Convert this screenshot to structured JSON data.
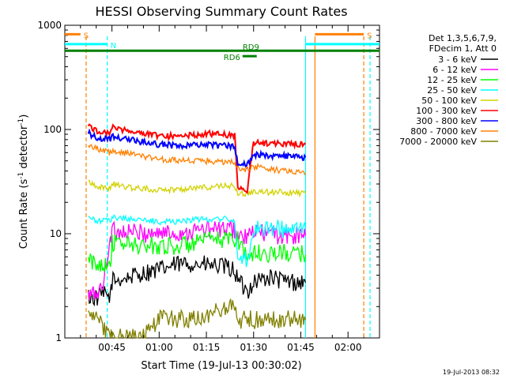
{
  "chart_data": {
    "type": "line",
    "title": "HESSI Observing Summary Count Rates",
    "xlabel": "Start Time (19-Jul-13 00:30:02)",
    "ylabel": "Count Rate (s⁻¹ detector⁻¹)",
    "ylabel_base": "Count Rate (s",
    "ylabel_exp1": "-1",
    "ylabel_mid": " detector",
    "ylabel_exp2": "-1",
    "ylabel_end": ")",
    "yscale": "log",
    "ylim": [
      1,
      1000
    ],
    "xlim_minutes": [
      30.03,
      130.0
    ],
    "xticks": [
      {
        "minute": 45,
        "label": "00:45"
      },
      {
        "minute": 60,
        "label": "01:00"
      },
      {
        "minute": 75,
        "label": "01:15"
      },
      {
        "minute": 90,
        "label": "01:30"
      },
      {
        "minute": 105,
        "label": "01:45"
      },
      {
        "minute": 120,
        "label": "02:00"
      }
    ],
    "yticks": [
      {
        "value": 1,
        "label": "1"
      },
      {
        "value": 10,
        "label": "10"
      },
      {
        "value": 100,
        "label": "100"
      },
      {
        "value": 1000,
        "label": "1000"
      }
    ],
    "legend_header": [
      "Det 1,3,5,6,7,9,",
      "FDecim 1, Att 0"
    ],
    "legend_position": "right",
    "series": [
      {
        "name": "3 - 6 keV",
        "color": "#000000",
        "x": [
          37.5,
          40,
          42,
          44.5,
          45,
          50,
          55,
          60,
          65,
          70,
          75,
          80,
          84,
          85,
          88,
          90,
          95,
          100,
          105,
          106.5
        ],
        "values": [
          2.5,
          2.4,
          2.6,
          2.5,
          3.5,
          3.8,
          4.2,
          4.5,
          5.0,
          5.2,
          5.0,
          4.8,
          4.5,
          3.5,
          2.8,
          3.5,
          3.8,
          3.5,
          3.4,
          3.4
        ]
      },
      {
        "name": "6 - 12 keV",
        "color": "#ff00ff",
        "x": [
          37.5,
          40,
          42,
          44.5,
          45,
          50,
          55,
          60,
          65,
          70,
          75,
          80,
          84,
          85,
          88,
          90,
          95,
          100,
          105,
          106.5
        ],
        "values": [
          2.5,
          2.7,
          3.0,
          9.5,
          10.5,
          10.5,
          10.0,
          10.3,
          10.0,
          10.5,
          11.0,
          11.0,
          11.0,
          9.5,
          9.0,
          10.5,
          10.0,
          9.5,
          9.5,
          9.5
        ]
      },
      {
        "name": "12 - 25 keV",
        "color": "#00ff00",
        "x": [
          37.5,
          40,
          42,
          44.5,
          45,
          50,
          55,
          60,
          65,
          70,
          75,
          80,
          84,
          85,
          88,
          90,
          95,
          100,
          105,
          106.5
        ],
        "values": [
          5.5,
          5.0,
          5.2,
          5.4,
          8.0,
          8.0,
          7.5,
          7.8,
          7.5,
          8.0,
          8.5,
          8.8,
          9.0,
          9.0,
          6.0,
          6.5,
          6.5,
          6.5,
          6.3,
          6.3
        ]
      },
      {
        "name": "25 - 50 keV",
        "color": "#00ffff",
        "x": [
          37.5,
          40,
          42,
          44.5,
          45,
          50,
          55,
          60,
          65,
          70,
          75,
          80,
          84,
          85,
          88,
          90,
          95,
          100,
          105,
          106.5
        ],
        "values": [
          14.5,
          13.0,
          13.5,
          13.0,
          14.5,
          14.0,
          13.5,
          13.0,
          13.2,
          13.5,
          13.8,
          14.0,
          13.0,
          6.0,
          5.5,
          11.5,
          11.5,
          11.0,
          11.0,
          11.0
        ]
      },
      {
        "name": "50 - 100 keV",
        "color": "#d2d200",
        "x": [
          37.5,
          40,
          42,
          44.5,
          45,
          50,
          55,
          60,
          65,
          70,
          75,
          80,
          84,
          85,
          88,
          90,
          95,
          100,
          105,
          106.5
        ],
        "values": [
          32,
          29,
          28,
          27,
          30,
          28,
          27,
          26.5,
          26.5,
          27.5,
          28,
          28.5,
          29,
          24,
          24,
          25.5,
          25,
          25,
          24.5,
          24.5
        ]
      },
      {
        "name": "100 - 300 keV",
        "color": "#ff0000",
        "x": [
          37.5,
          40,
          42,
          44.5,
          45,
          50,
          55,
          60,
          65,
          70,
          75,
          80,
          84,
          85,
          88,
          90,
          95,
          100,
          105,
          106.5
        ],
        "values": [
          108,
          98,
          95,
          92,
          105,
          98,
          92,
          87,
          86,
          88,
          91,
          90,
          88,
          27,
          26,
          75,
          74,
          73,
          72,
          72
        ]
      },
      {
        "name": "300 - 800 keV",
        "color": "#0000ff",
        "x": [
          37.5,
          40,
          42,
          44.5,
          45,
          50,
          55,
          60,
          65,
          70,
          75,
          80,
          84,
          85,
          88,
          90,
          95,
          100,
          105,
          106.5
        ],
        "values": [
          92,
          85,
          82,
          80,
          86,
          80,
          76,
          72,
          70,
          70,
          71,
          70,
          69,
          48,
          46,
          58,
          56,
          55,
          54,
          54
        ]
      },
      {
        "name": "800 - 7000 keV",
        "color": "#ff8000",
        "x": [
          37.5,
          40,
          42,
          44.5,
          45,
          50,
          55,
          60,
          65,
          70,
          75,
          80,
          84,
          85,
          88,
          90,
          95,
          100,
          105,
          106.5
        ],
        "values": [
          72,
          66,
          63,
          60,
          63,
          59,
          55,
          52,
          51,
          50,
          50,
          49,
          48,
          42,
          41,
          44,
          42,
          40,
          38,
          38
        ]
      },
      {
        "name": "7000 - 20000 keV",
        "color": "#808000",
        "x": [
          37.5,
          40,
          42,
          44.5,
          45,
          50,
          55,
          60,
          65,
          70,
          75,
          80,
          84,
          85,
          88,
          90,
          95,
          100,
          105,
          106.5
        ],
        "values": [
          2.0,
          1.5,
          1.3,
          1.0,
          1.0,
          1.0,
          1.0,
          1.5,
          1.5,
          1.5,
          1.5,
          2.0,
          2.0,
          1.5,
          1.5,
          1.5,
          1.5,
          1.5,
          1.5,
          1.5
        ]
      }
    ],
    "flag_bars": [
      {
        "label": "S",
        "color": "#ff8000",
        "x_start": 30.03,
        "x_end": 35.0,
        "level": 820
      },
      {
        "label": "S",
        "color": "#ff8000",
        "x_start": 109.5,
        "x_end": 125.0,
        "level": 820
      },
      {
        "label": "N",
        "color": "#00ffff",
        "x_start": 30.03,
        "x_end": 43.5,
        "level": 660
      },
      {
        "label": "",
        "color": "#00ffff",
        "x_start": 106.5,
        "x_end": 130.0,
        "level": 660
      },
      {
        "label": "RD9",
        "color": "#008000",
        "x_start": 30.03,
        "x_end": 130.0,
        "level": 570
      },
      {
        "label": "RD6",
        "color": "#008000",
        "x_start": 86.5,
        "x_end": 91.0,
        "level": 505
      }
    ],
    "vlines": [
      {
        "minute": 36.8,
        "color": "#ff8000",
        "dashed": true
      },
      {
        "minute": 43.5,
        "color": "#00ffff",
        "dashed": true
      },
      {
        "minute": 106.5,
        "color": "#00ffff",
        "dashed": false
      },
      {
        "minute": 109.5,
        "color": "#ff8000",
        "dashed": false
      },
      {
        "minute": 125.0,
        "color": "#ff8000",
        "dashed": true
      },
      {
        "minute": 127.0,
        "color": "#00ffff",
        "dashed": true
      }
    ]
  },
  "footer": {
    "timestamp": "19-Jul-2013 08:32"
  }
}
